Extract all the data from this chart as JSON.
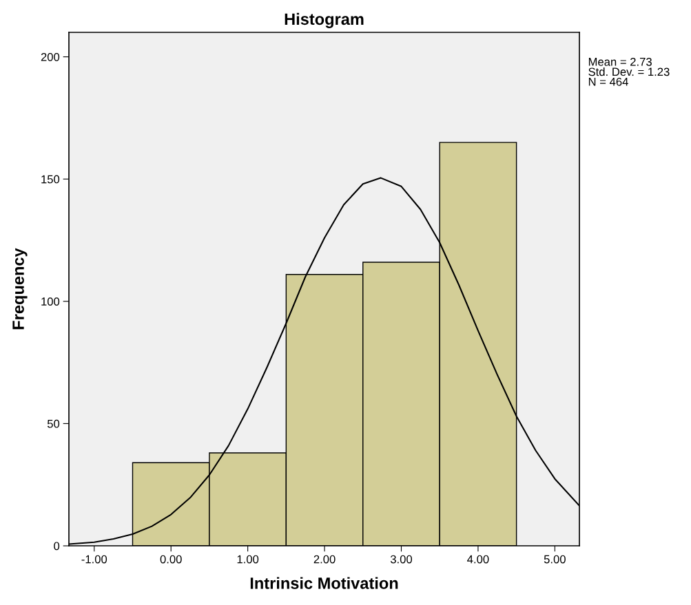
{
  "chart_data": {
    "type": "histogram",
    "title": "Histogram",
    "xlabel": "Intrinsic Motivation",
    "ylabel": "Frequency",
    "bins": [
      -0.5,
      0.5,
      1.5,
      2.5,
      3.5,
      4.5
    ],
    "values": [
      34,
      38,
      111,
      116,
      165
    ],
    "color": "#d3ce97",
    "series": [
      {
        "type": "line",
        "color": "#000000",
        "x": [
          -1.33,
          -1.0,
          -0.75,
          -0.5,
          -0.25,
          0.0,
          0.25,
          0.5,
          0.75,
          1.0,
          1.25,
          1.5,
          1.75,
          2.0,
          2.25,
          2.5,
          2.73,
          3.0,
          3.25,
          3.5,
          3.75,
          4.0,
          4.25,
          4.5,
          4.75,
          5.0,
          5.32
        ],
        "values": [
          0.7,
          1.5,
          2.8,
          4.8,
          8,
          12.8,
          19.7,
          29,
          41,
          56,
          73,
          91,
          110,
          126,
          139.5,
          148,
          150.5,
          147,
          137.6,
          124,
          106.7,
          88,
          70,
          53,
          39,
          27.4,
          16.4
        ]
      }
    ],
    "xlim": [
      -1.33,
      5.32
    ],
    "xticks": [
      {
        "value": -1,
        "label": "-1.00"
      },
      {
        "value": 0,
        "label": "0.00"
      },
      {
        "value": 1,
        "label": "1.00"
      },
      {
        "value": 2,
        "label": "2.00"
      },
      {
        "value": 3,
        "label": "3.00"
      },
      {
        "value": 4,
        "label": "4.00"
      },
      {
        "value": 5,
        "label": "5.00"
      }
    ],
    "ylim": [
      0,
      210
    ],
    "yticks": [
      0,
      50,
      100,
      150,
      200
    ],
    "annotations": [
      "Mean = 2.73",
      "Std. Dev. = 1.23",
      "N = 464"
    ]
  }
}
